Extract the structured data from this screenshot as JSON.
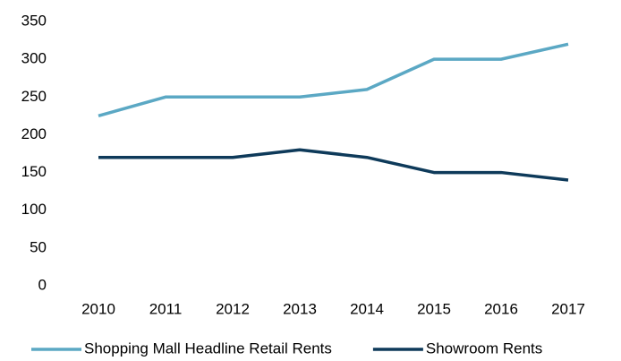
{
  "chart_data": {
    "type": "line",
    "categories": [
      "2010",
      "2011",
      "2012",
      "2013",
      "2014",
      "2015",
      "2016",
      "2017"
    ],
    "series": [
      {
        "name": "Shopping Mall Headline Retail Rents",
        "color": "#5ba8c4",
        "values": [
          225,
          250,
          250,
          250,
          260,
          300,
          300,
          320
        ]
      },
      {
        "name": "Showroom Rents",
        "color": "#0e3a5a",
        "values": [
          170,
          170,
          170,
          180,
          170,
          150,
          150,
          140
        ]
      }
    ],
    "ylim": [
      0,
      350
    ],
    "yticks": [
      0,
      50,
      100,
      150,
      200,
      250,
      300,
      350
    ],
    "grid": false,
    "legend": "bottom"
  }
}
